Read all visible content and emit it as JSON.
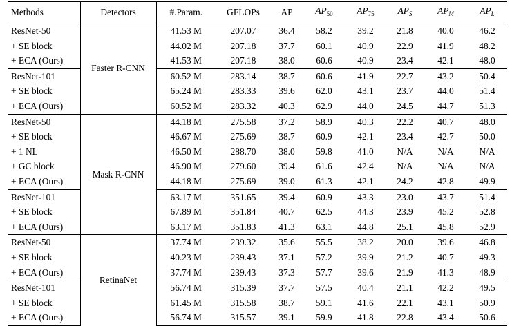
{
  "columns": [
    "Methods",
    "Detectors",
    "#.Param.",
    "GFLOPs",
    "AP",
    "AP",
    "AP",
    "AP",
    "AP",
    "AP"
  ],
  "column_subscripts": [
    "",
    "",
    "",
    "",
    "",
    "50",
    "75",
    "S",
    "M",
    "L"
  ],
  "groups": [
    {
      "detector": "Faster R-CNN",
      "blocks": [
        {
          "rows": [
            {
              "method": "ResNet-50",
              "cells": [
                "41.53 M",
                "207.07",
                "36.4",
                "58.2",
                "39.2",
                "21.8",
                "40.0",
                "46.2"
              ],
              "bold": [
                0,
                1
              ]
            },
            {
              "method": "+ SE block",
              "cells": [
                "44.02 M",
                "207.18",
                "37.7",
                "60.1",
                "40.9",
                "22.9",
                "41.9",
                "48.2"
              ],
              "bold": [
                7
              ]
            },
            {
              "method": "+ ECA (Ours)",
              "cells": [
                "41.53 M",
                "207.18",
                "38.0",
                "60.6",
                "40.9",
                "23.4",
                "42.1",
                "48.0"
              ],
              "bold": [
                0,
                2,
                3,
                4,
                5,
                6
              ]
            }
          ]
        },
        {
          "rows": [
            {
              "method": "ResNet-101",
              "cells": [
                "60.52 M",
                "283.14",
                "38.7",
                "60.6",
                "41.9",
                "22.7",
                "43.2",
                "50.4"
              ],
              "bold": [
                0,
                1
              ]
            },
            {
              "method": "+ SE block",
              "cells": [
                "65.24 M",
                "283.33",
                "39.6",
                "62.0",
                "43.1",
                "23.7",
                "44.0",
                "51.4"
              ],
              "bold": [
                7
              ]
            },
            {
              "method": "+ ECA (Ours)",
              "cells": [
                "60.52 M",
                "283.32",
                "40.3",
                "62.9",
                "44.0",
                "24.5",
                "44.7",
                "51.3"
              ],
              "bold": [
                0,
                2,
                3,
                4,
                5,
                6
              ]
            }
          ]
        }
      ]
    },
    {
      "detector": "Mask R-CNN",
      "blocks": [
        {
          "rows": [
            {
              "method": "ResNet-50",
              "cells": [
                "44.18 M",
                "275.58",
                "37.2",
                "58.9",
                "40.3",
                "22.2",
                "40.7",
                "48.0"
              ],
              "bold": [
                0,
                1
              ]
            },
            {
              "method": "+ SE block",
              "cells": [
                "46.67 M",
                "275.69",
                "38.7",
                "60.9",
                "42.1",
                "23.4",
                "42.7",
                "50.0"
              ],
              "bold": [
                7
              ]
            },
            {
              "method": "+ 1 NL",
              "cells": [
                "46.50 M",
                "288.70",
                "38.0",
                "59.8",
                "41.0",
                "N/A",
                "N/A",
                "N/A"
              ],
              "bold": []
            },
            {
              "method": "+ GC block",
              "cells": [
                "46.90 M",
                "279.60",
                "39.4",
                "61.6",
                "42.4",
                "N/A",
                "N/A",
                "N/A"
              ],
              "bold": [
                2,
                3,
                4
              ]
            },
            {
              "method": "+ ECA (Ours)",
              "cells": [
                "44.18 M",
                "275.69",
                "39.0",
                "61.3",
                "42.1",
                "24.2",
                "42.8",
                "49.9"
              ],
              "bold": [
                0,
                5,
                6
              ]
            }
          ]
        },
        {
          "rows": [
            {
              "method": "ResNet-101",
              "cells": [
                "63.17 M",
                "351.65",
                "39.4",
                "60.9",
                "43.3",
                "23.0",
                "43.7",
                "51.4"
              ],
              "bold": [
                0,
                1
              ]
            },
            {
              "method": "+ SE block",
              "cells": [
                "67.89 M",
                "351.84",
                "40.7",
                "62.5",
                "44.3",
                "23.9",
                "45.2",
                "52.8"
              ],
              "bold": []
            },
            {
              "method": "+ ECA (Ours)",
              "cells": [
                "63.17 M",
                "351.83",
                "41.3",
                "63.1",
                "44.8",
                "25.1",
                "45.8",
                "52.9"
              ],
              "bold": [
                0,
                2,
                3,
                4,
                5,
                6,
                7
              ]
            }
          ]
        }
      ]
    },
    {
      "detector": "RetinaNet",
      "blocks": [
        {
          "rows": [
            {
              "method": "ResNet-50",
              "cells": [
                "37.74 M",
                "239.32",
                "35.6",
                "55.5",
                "38.2",
                "20.0",
                "39.6",
                "46.8"
              ],
              "bold": [
                0,
                1
              ]
            },
            {
              "method": "+ SE block",
              "cells": [
                "40.23 M",
                "239.43",
                "37.1",
                "57.2",
                "39.9",
                "21.2",
                "40.7",
                "49.3"
              ],
              "bold": [
                4,
                7
              ]
            },
            {
              "method": "+ ECA (Ours)",
              "cells": [
                "37.74 M",
                "239.43",
                "37.3",
                "57.7",
                "39.6",
                "21.9",
                "41.3",
                "48.9"
              ],
              "bold": [
                0,
                2,
                3,
                5,
                6
              ]
            }
          ]
        },
        {
          "rows": [
            {
              "method": "ResNet-101",
              "cells": [
                "56.74 M",
                "315.39",
                "37.7",
                "57.5",
                "40.4",
                "21.1",
                "42.2",
                "49.5"
              ],
              "bold": [
                0,
                1
              ]
            },
            {
              "method": "+ SE block",
              "cells": [
                "61.45 M",
                "315.58",
                "38.7",
                "59.1",
                "41.6",
                "22.1",
                "43.1",
                "50.9"
              ],
              "bold": [
                7
              ]
            },
            {
              "method": "+ ECA (Ours)",
              "cells": [
                "56.74 M",
                "315.57",
                "39.1",
                "59.9",
                "41.8",
                "22.8",
                "43.4",
                "50.6"
              ],
              "bold": [
                0,
                2,
                3,
                4,
                5,
                6
              ]
            }
          ]
        }
      ]
    }
  ]
}
